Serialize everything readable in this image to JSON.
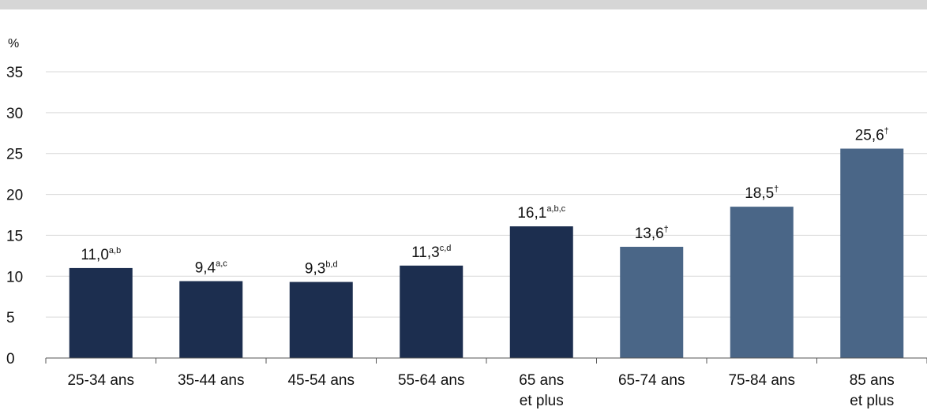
{
  "colors": {
    "dark_bar": "#1c2e4f",
    "light_bar": "#4a6687",
    "grid": "#d9d9d9",
    "axis": "#555555"
  },
  "chart_data": {
    "type": "bar",
    "title": "",
    "xlabel": "",
    "ylabel": "%",
    "ylim": [
      0,
      35
    ],
    "yticks": [
      0,
      5,
      10,
      15,
      20,
      25,
      30,
      35
    ],
    "grid": true,
    "categories": [
      [
        "25-34 ans"
      ],
      [
        "35-44 ans"
      ],
      [
        "45-54 ans"
      ],
      [
        "55-64 ans"
      ],
      [
        "65 ans",
        "et plus"
      ],
      [
        "65-74 ans"
      ],
      [
        "75-84 ans"
      ],
      [
        "85 ans",
        "et plus"
      ]
    ],
    "values": [
      11.0,
      9.4,
      9.3,
      11.3,
      16.1,
      13.6,
      18.5,
      25.6
    ],
    "value_labels": [
      "11,0",
      "9,4",
      "9,3",
      "11,3",
      "16,1",
      "13,6",
      "18,5",
      "25,6"
    ],
    "superscripts": [
      "a,b",
      "a,c",
      "b,d",
      "c,d",
      "a,b,c",
      "†",
      "†",
      "†"
    ],
    "bar_color_keys": [
      "dark_bar",
      "dark_bar",
      "dark_bar",
      "dark_bar",
      "dark_bar",
      "light_bar",
      "light_bar",
      "light_bar"
    ]
  }
}
